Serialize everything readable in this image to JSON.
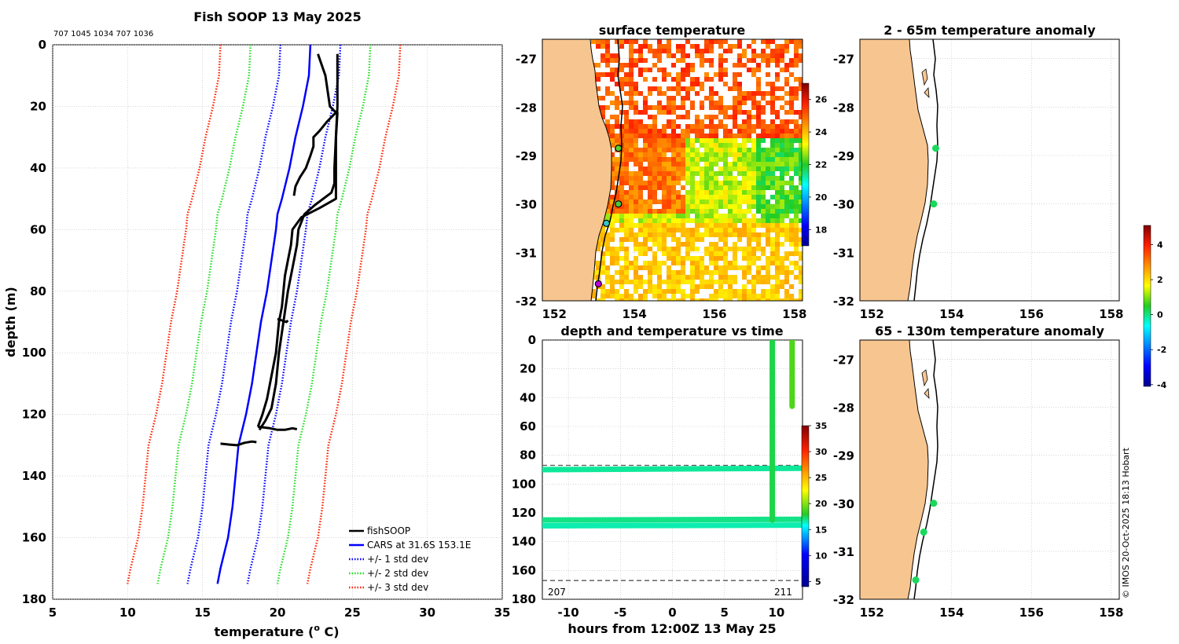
{
  "colors": {
    "land": "#f7c590",
    "fish": "#000000",
    "cars": "#0000ff",
    "std1": "#0000ff",
    "std2": "#22dd22",
    "std3": "#ff2200",
    "grid": "#bbbbbb",
    "dashed": "#555555"
  },
  "footer": "© IMOS 20-Oct-2025 18:13 Hobart",
  "chart_data": [
    {
      "id": "profile",
      "type": "line",
      "title": "Fish SOOP 13 May 2025",
      "subtitle": "707 1045 1034 707 1036",
      "xlabel": "temperature (",
      "xlabel_sup": "o",
      "xlabel_tail": " C)",
      "ylabel": "depth (m)",
      "xlim": [
        5,
        35
      ],
      "ylim": [
        180,
        0
      ],
      "xticks": [
        5,
        10,
        15,
        20,
        25,
        30,
        35
      ],
      "yticks": [
        0,
        20,
        40,
        60,
        80,
        100,
        120,
        140,
        160,
        180
      ],
      "legend_position": "bottom-right",
      "legend": [
        {
          "label": "fishSOOP",
          "color": "#000000",
          "style": "solid"
        },
        {
          "label": "CARS at 31.6S 153.1E",
          "color": "#0000ff",
          "style": "solid"
        },
        {
          "label": "+/- 1 std dev",
          "color": "#0000ff",
          "style": "dotted"
        },
        {
          "label": "+/- 2 std dev",
          "color": "#22dd22",
          "style": "dotted"
        },
        {
          "label": "+/- 3 std dev",
          "color": "#ff2200",
          "style": "dotted"
        }
      ],
      "climatology_depth": [
        0,
        10,
        20,
        30,
        40,
        50,
        55,
        60,
        70,
        80,
        90,
        100,
        110,
        120,
        130,
        140,
        150,
        160,
        170,
        175
      ],
      "cars_mean": [
        22.2,
        22.1,
        21.7,
        21.2,
        20.8,
        20.3,
        20.0,
        19.9,
        19.6,
        19.3,
        18.9,
        18.6,
        18.3,
        17.9,
        17.4,
        17.2,
        17.0,
        16.7,
        16.2,
        16.0
      ],
      "std_offsets": {
        "1": 2.0,
        "2": 4.0,
        "3": 6.0
      },
      "fishSOOP_profiles": [
        {
          "depth": [
            3,
            10,
            20,
            30,
            40,
            45,
            48,
            52,
            55,
            60,
            65,
            70,
            80,
            90,
            100,
            110,
            118,
            122,
            125
          ],
          "temp": [
            24.0,
            24.0,
            24.0,
            23.9,
            23.8,
            23.8,
            23.6,
            22.5,
            21.8,
            21.4,
            21.3,
            21.1,
            20.7,
            20.4,
            20.1,
            19.9,
            19.6,
            19.2,
            18.8
          ]
        },
        {
          "depth": [
            3,
            10,
            20,
            22,
            25,
            28,
            30,
            33,
            36,
            40,
            43,
            46,
            49
          ],
          "temp": [
            22.7,
            23.2,
            23.5,
            23.9,
            23.3,
            22.8,
            22.4,
            22.4,
            22.2,
            21.9,
            21.5,
            21.2,
            21.1
          ]
        },
        {
          "depth": [
            22,
            30,
            40,
            50,
            53,
            56,
            60,
            65,
            70,
            75,
            80,
            85,
            90,
            95,
            100,
            105,
            110,
            115,
            120,
            124
          ],
          "temp": [
            24.0,
            23.9,
            23.9,
            23.9,
            22.8,
            21.6,
            21.0,
            20.9,
            20.7,
            20.5,
            20.4,
            20.3,
            20.1,
            20.0,
            19.9,
            19.7,
            19.5,
            19.3,
            19.0,
            18.7
          ]
        },
        {
          "depth": [
            124,
            124.5,
            125,
            125,
            124.5,
            124.8
          ],
          "temp": [
            18.7,
            19.5,
            20.0,
            20.5,
            21.0,
            21.3
          ]
        },
        {
          "depth": [
            129.5,
            129.8,
            130,
            129.2,
            128.8,
            129
          ],
          "temp": [
            16.2,
            16.8,
            17.3,
            17.8,
            18.3,
            18.6
          ]
        },
        {
          "depth": [
            89,
            89.5,
            90,
            89.5
          ],
          "temp": [
            20.0,
            20.3,
            20.6,
            20.7
          ]
        }
      ]
    },
    {
      "id": "sst_map",
      "type": "heatmap",
      "title": "surface temperature",
      "xlim": [
        151.7,
        158.2
      ],
      "ylim": [
        -32,
        -26.6
      ],
      "xticks": [
        152,
        154,
        156,
        158
      ],
      "yticks": [
        -27,
        -28,
        -29,
        -30,
        -31,
        -32
      ],
      "colorbar": {
        "ticks": [
          18,
          20,
          22,
          24,
          26
        ],
        "range": [
          17,
          27
        ]
      },
      "markers": [
        {
          "lon": 153.6,
          "lat": -28.85,
          "fill": "#5ccf2a"
        },
        {
          "lon": 153.6,
          "lat": -30.0,
          "fill": "#4dc83d"
        },
        {
          "lon": 153.3,
          "lat": -30.4,
          "fill": "#35c4c8"
        },
        {
          "lon": 153.1,
          "lat": -31.65,
          "fill": "#c000e0"
        }
      ]
    },
    {
      "id": "time_depth",
      "type": "scatter",
      "title": "depth and temperature vs time",
      "xlabel": "hours from 12:00Z 13 May 25",
      "xlim": [
        -12.5,
        12.5
      ],
      "ylim": [
        180,
        0
      ],
      "xticks": [
        -10,
        -5,
        0,
        5,
        10
      ],
      "yticks": [
        0,
        20,
        40,
        60,
        80,
        100,
        120,
        140,
        160,
        180
      ],
      "dashed_depths": [
        87,
        167
      ],
      "labels": {
        "left": "207",
        "right": "211"
      },
      "colorbar": {
        "ticks": [
          5,
          10,
          15,
          20,
          25,
          30,
          35
        ],
        "range": [
          4,
          35
        ]
      },
      "tracks": [
        {
          "hours": [
            -12.5,
            12.5
          ],
          "depth": [
            90,
            89
          ],
          "temp": 20
        },
        {
          "hours": [
            -12.5,
            12.5
          ],
          "depth": [
            125,
            124.5
          ],
          "temp": 20.5
        },
        {
          "hours": [
            -12.5,
            12.5
          ],
          "depth": [
            129,
            128.5
          ],
          "temp": 19.5
        },
        {
          "hours": [
            9.6,
            9.6
          ],
          "depth": [
            0,
            125
          ],
          "temp": 22
        },
        {
          "hours": [
            11.5,
            11.5
          ],
          "depth": [
            0,
            46
          ],
          "temp": 24
        }
      ]
    },
    {
      "id": "anomaly_shallow",
      "type": "scatter",
      "title": "2 - 65m temperature anomaly",
      "xlim": [
        151.7,
        158.2
      ],
      "ylim": [
        -32,
        -26.6
      ],
      "xticks": [
        152,
        154,
        156,
        158
      ],
      "yticks": [
        -27,
        -28,
        -29,
        -30,
        -31,
        -32
      ],
      "points": [
        {
          "lon": 153.6,
          "lat": -28.85,
          "anomaly": 0.2
        },
        {
          "lon": 153.55,
          "lat": -30.0,
          "anomaly": 0.2
        }
      ]
    },
    {
      "id": "anomaly_deep",
      "type": "scatter",
      "title": "65 - 130m temperature anomaly",
      "xlim": [
        151.7,
        158.2
      ],
      "ylim": [
        -32,
        -26.6
      ],
      "xticks": [
        152,
        154,
        156,
        158
      ],
      "yticks": [
        -27,
        -28,
        -29,
        -30,
        -31,
        -32
      ],
      "points": [
        {
          "lon": 153.55,
          "lat": -30.0,
          "anomaly": 0.2
        },
        {
          "lon": 153.3,
          "lat": -30.6,
          "anomaly": 0.2
        },
        {
          "lon": 153.1,
          "lat": -31.6,
          "anomaly": 0.2
        }
      ],
      "colorbar": {
        "ticks": [
          4,
          2,
          0,
          -2,
          -4
        ],
        "range": [
          -4.1,
          5.1
        ]
      }
    }
  ]
}
